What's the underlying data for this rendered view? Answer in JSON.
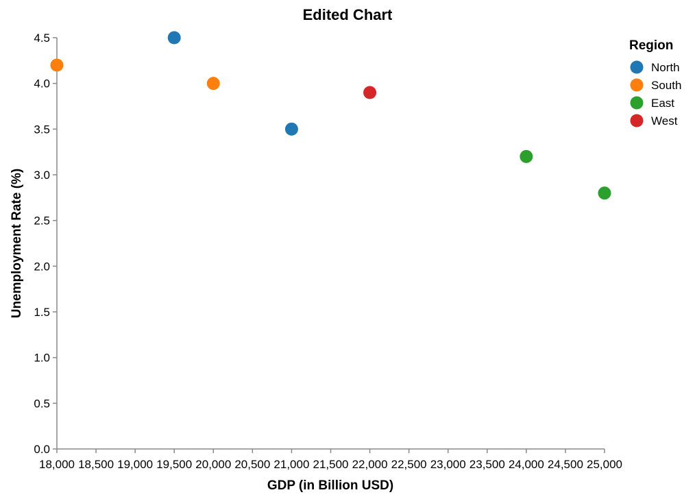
{
  "chart_data": {
    "type": "scatter",
    "title": "Edited Chart",
    "xlabel": "GDP (in Billion USD)",
    "ylabel": "Unemployment Rate (%)",
    "xlim": [
      18000,
      25000
    ],
    "ylim": [
      0,
      4.5
    ],
    "x_ticks": [
      18000,
      18500,
      19000,
      19500,
      20000,
      20500,
      21000,
      21500,
      22000,
      22500,
      23000,
      23500,
      24000,
      24500,
      25000
    ],
    "y_ticks": [
      0.0,
      0.5,
      1.0,
      1.5,
      2.0,
      2.5,
      3.0,
      3.5,
      4.0,
      4.5
    ],
    "grid": false,
    "legend": {
      "title": "Region",
      "placement": "top-right",
      "entries": [
        {
          "name": "North",
          "color": "#1f77b4"
        },
        {
          "name": "South",
          "color": "#ff7f0e"
        },
        {
          "name": "East",
          "color": "#2ca02c"
        },
        {
          "name": "West",
          "color": "#d62728"
        }
      ]
    },
    "series": [
      {
        "name": "North",
        "color": "#1f77b4",
        "points": [
          {
            "x": 19500,
            "y": 4.5
          },
          {
            "x": 21000,
            "y": 3.5
          }
        ]
      },
      {
        "name": "South",
        "color": "#ff7f0e",
        "points": [
          {
            "x": 18000,
            "y": 4.2
          },
          {
            "x": 20000,
            "y": 4.0
          }
        ]
      },
      {
        "name": "East",
        "color": "#2ca02c",
        "points": [
          {
            "x": 24000,
            "y": 3.2
          },
          {
            "x": 25000,
            "y": 2.8
          }
        ]
      },
      {
        "name": "West",
        "color": "#d62728",
        "points": [
          {
            "x": 22000,
            "y": 3.9
          }
        ]
      }
    ]
  }
}
